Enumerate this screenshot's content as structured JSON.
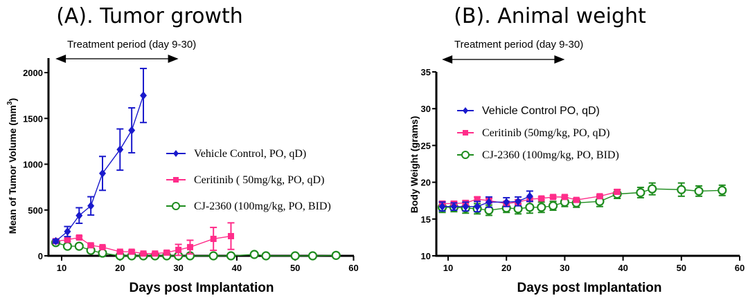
{
  "chart_data": [
    {
      "type": "line",
      "title": "(A). Tumor growth",
      "xlabel": "Days post Implantation",
      "ylabel": "Mean of Tumor Volume (mm3)",
      "ylabel_main": "Mean of Tumor Volume (mm",
      "ylabel_sup": "3",
      "ylabel_end": ")",
      "xlim": [
        8,
        60
      ],
      "ylim": [
        0,
        2000
      ],
      "xticks": [
        10,
        20,
        30,
        40,
        50,
        60
      ],
      "yticks": [
        0,
        500,
        1000,
        1500,
        2000
      ],
      "annotation": {
        "text": "Treatment period (day 9-30)",
        "from_day": 8,
        "to_day": 30
      },
      "legend_position": "right-middle",
      "series": [
        {
          "name": "Vehicle Control, PO, qD)",
          "color": "#1a1acc",
          "marker": "diamond",
          "x": [
            9,
            11,
            13,
            15,
            17,
            20,
            22,
            24
          ],
          "y": [
            160,
            265,
            440,
            545,
            900,
            1160,
            1370,
            1750
          ],
          "err": [
            20,
            55,
            85,
            100,
            185,
            225,
            245,
            295
          ]
        },
        {
          "name": "Ceritinib ( 50mg/kg, PO, qD)",
          "color": "#ff2d8a",
          "marker": "square",
          "x": [
            9,
            11,
            13,
            15,
            17,
            20,
            22,
            24,
            26,
            28,
            30,
            32,
            36,
            39
          ],
          "y": [
            160,
            175,
            200,
            115,
            95,
            45,
            45,
            25,
            25,
            35,
            65,
            95,
            185,
            215
          ],
          "err": [
            10,
            15,
            15,
            10,
            10,
            10,
            15,
            10,
            10,
            15,
            60,
            75,
            125,
            145
          ]
        },
        {
          "name": "CJ-2360 (100mg/kg, PO, BID)",
          "color": "#1e8c1e",
          "marker": "open-circle",
          "x": [
            9,
            11,
            13,
            15,
            17,
            20,
            22,
            24,
            26,
            28,
            30,
            32,
            36,
            39,
            43,
            45,
            50,
            53,
            57
          ],
          "y": [
            145,
            105,
            105,
            60,
            30,
            0,
            0,
            0,
            0,
            0,
            0,
            0,
            0,
            0,
            15,
            0,
            0,
            0,
            5
          ],
          "err": [
            10,
            10,
            10,
            10,
            10,
            0,
            0,
            0,
            0,
            0,
            0,
            0,
            0,
            0,
            5,
            0,
            0,
            0,
            0
          ]
        }
      ]
    },
    {
      "type": "line",
      "title": "(B). Animal weight",
      "xlabel": "Days post Implantation",
      "ylabel": "Body Weight (grams)",
      "xlim": [
        8,
        60
      ],
      "ylim": [
        10,
        35
      ],
      "xticks": [
        10,
        20,
        30,
        40,
        50,
        60
      ],
      "yticks": [
        10,
        15,
        20,
        25,
        30,
        35
      ],
      "annotation": {
        "text": "Treatment period (day 9-30)",
        "from_day": 8,
        "to_day": 30
      },
      "legend_position": "upper-left",
      "series": [
        {
          "name": "Vehicle Control  PO, qD)",
          "color": "#1a1acc",
          "marker": "diamond",
          "x": [
            9,
            11,
            13,
            15,
            17,
            20,
            22,
            24
          ],
          "y": [
            16.7,
            16.7,
            16.7,
            16.7,
            17.3,
            17.3,
            17.4,
            18.1
          ],
          "err": [
            0.6,
            0.5,
            0.6,
            0.7,
            0.7,
            0.6,
            0.6,
            0.7
          ]
        },
        {
          "name": "Ceritinib (50mg/kg, PO, qD)",
          "color": "#ff2d8a",
          "marker": "square",
          "x": [
            9,
            11,
            13,
            15,
            17,
            20,
            22,
            24,
            26,
            28,
            30,
            32,
            36,
            39
          ],
          "y": [
            17.1,
            17.1,
            17.2,
            17.7,
            17.5,
            17.1,
            17.3,
            17.7,
            17.8,
            18.0,
            18.0,
            17.6,
            18.1,
            18.7
          ],
          "err": [
            0.3,
            0.3,
            0.3,
            0.3,
            0.3,
            0.3,
            0.3,
            0.2,
            0.2,
            0.2,
            0.2,
            0.2,
            0.2,
            0.3
          ]
        },
        {
          "name": "CJ-2360 (100mg/kg, PO, BID)",
          "color": "#1e8c1e",
          "marker": "open-circle",
          "x": [
            9,
            11,
            13,
            15,
            17,
            20,
            22,
            24,
            26,
            28,
            30,
            32,
            36,
            39,
            43,
            45,
            50,
            53,
            57
          ],
          "y": [
            16.6,
            16.6,
            16.5,
            16.4,
            16.2,
            16.5,
            16.4,
            16.6,
            16.6,
            16.8,
            17.3,
            17.2,
            17.4,
            18.4,
            18.6,
            19.1,
            19.0,
            18.8,
            18.9
          ],
          "err": [
            0.7,
            0.6,
            0.7,
            0.7,
            0.7,
            0.6,
            0.7,
            0.8,
            0.7,
            0.6,
            0.6,
            0.6,
            0.7,
            0.6,
            0.7,
            0.8,
            0.9,
            0.7,
            0.7
          ]
        }
      ]
    }
  ]
}
